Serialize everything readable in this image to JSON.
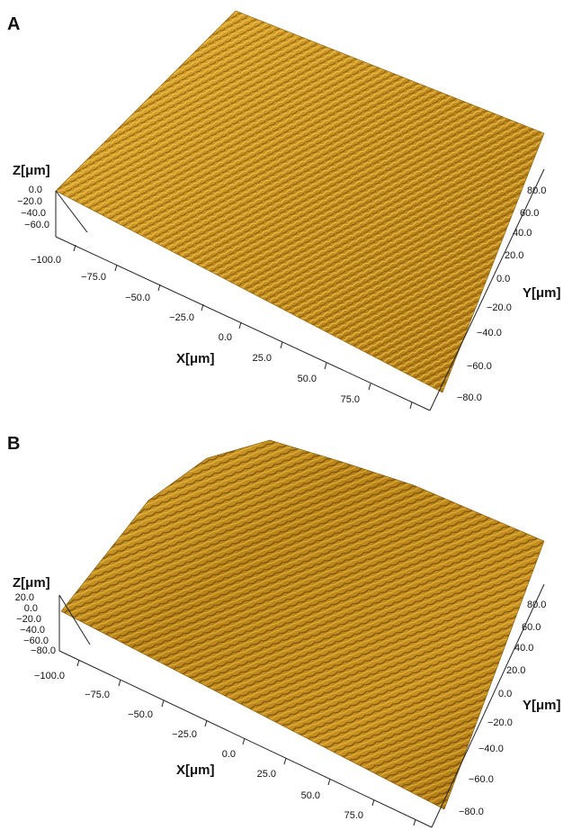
{
  "colors": {
    "surface_light": "#e8b53c",
    "surface_mid": "#c28a1c",
    "surface_dark": "#6b4608"
  },
  "panels": [
    {
      "label": "A",
      "z_label": "Z[μm]",
      "x_label": "X[μm]",
      "y_label": "Y[μm]",
      "z_ticks": [
        "0.0",
        "−20.0",
        "−40.0",
        "−60.0"
      ],
      "x_ticks": [
        "−100.0",
        "−75.0",
        "−50.0",
        "−25.0",
        "0.0",
        "25.0",
        "50.0",
        "75.0"
      ],
      "y_ticks": [
        "80.0",
        "60.0",
        "40.0",
        "20.0",
        "0.0",
        "−20.0",
        "−40.0",
        "−60.0",
        "−80.0"
      ]
    },
    {
      "label": "B",
      "z_label": "Z[μm]",
      "x_label": "X[μm]",
      "y_label": "Y[μm]",
      "z_ticks": [
        "20.0",
        "0.0",
        "−20.0",
        "−40.0",
        "−60.0",
        "−80.0"
      ],
      "x_ticks": [
        "−100.0",
        "−75.0",
        "−50.0",
        "−25.0",
        "0.0",
        "25.0",
        "50.0",
        "75.0"
      ],
      "y_ticks": [
        "80.0",
        "60.0",
        "40.0",
        "20.0",
        "0.0",
        "−20.0",
        "−40.0",
        "−60.0",
        "−80.0"
      ]
    }
  ]
}
